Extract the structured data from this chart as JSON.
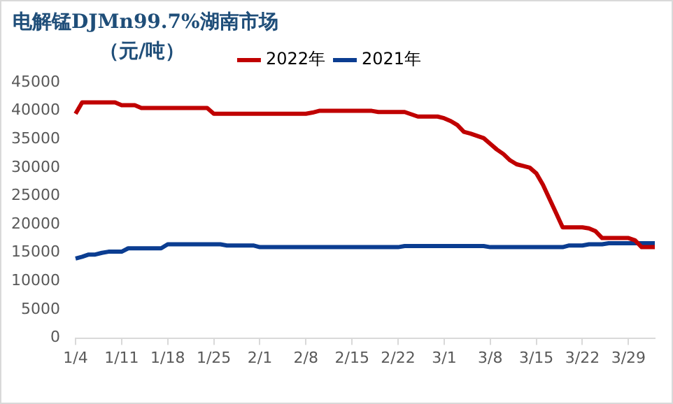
{
  "chart_data": {
    "type": "line",
    "title": "电解锰DJMn99.7%湖南市场",
    "subtitle": "（元/吨）",
    "categories": [
      "1/4",
      null,
      null,
      null,
      null,
      null,
      null,
      "1/11",
      null,
      null,
      null,
      null,
      null,
      null,
      "1/18",
      null,
      null,
      null,
      null,
      null,
      null,
      "1/25",
      null,
      null,
      null,
      null,
      null,
      null,
      "2/1",
      null,
      null,
      null,
      null,
      null,
      null,
      "2/8",
      null,
      null,
      null,
      null,
      null,
      null,
      "2/15",
      null,
      null,
      null,
      null,
      null,
      null,
      "2/22",
      null,
      null,
      null,
      null,
      null,
      null,
      "3/1",
      null,
      null,
      null,
      null,
      null,
      null,
      "3/8",
      null,
      null,
      null,
      null,
      null,
      null,
      "3/15",
      null,
      null,
      null,
      null,
      null,
      null,
      "3/22",
      null,
      null,
      null,
      null,
      null,
      null,
      "3/29",
      null,
      null,
      null,
      null
    ],
    "series": [
      {
        "name": "2022年",
        "color": "#c00000",
        "values": [
          39500,
          41500,
          41500,
          41500,
          41500,
          41500,
          41500,
          41000,
          41000,
          41000,
          40500,
          40500,
          40500,
          40500,
          40500,
          40500,
          40500,
          40500,
          40500,
          40500,
          40500,
          39500,
          39500,
          39500,
          39500,
          39500,
          39500,
          39500,
          39500,
          39500,
          39500,
          39500,
          39500,
          39500,
          39500,
          39500,
          39700,
          40000,
          40000,
          40000,
          40000,
          40000,
          40000,
          40000,
          40000,
          40000,
          39800,
          39800,
          39800,
          39800,
          39800,
          39400,
          39000,
          39000,
          39000,
          39000,
          38700,
          38200,
          37500,
          36300,
          36000,
          35600,
          35200,
          34200,
          33200,
          32400,
          31300,
          30600,
          30300,
          30000,
          29000,
          27000,
          24500,
          22000,
          19500,
          19500,
          19500,
          19500,
          19300,
          18800,
          17600,
          17600,
          17600,
          17600,
          17600,
          17200,
          16000,
          16000,
          16000
        ]
      },
      {
        "name": "2021年",
        "color": "#0b3d91",
        "values": [
          14000,
          14300,
          14700,
          14700,
          15000,
          15200,
          15200,
          15200,
          15800,
          15800,
          15800,
          15800,
          15800,
          15800,
          16500,
          16500,
          16500,
          16500,
          16500,
          16500,
          16500,
          16500,
          16500,
          16300,
          16300,
          16300,
          16300,
          16300,
          16000,
          16000,
          16000,
          16000,
          16000,
          16000,
          16000,
          16000,
          16000,
          16000,
          16000,
          16000,
          16000,
          16000,
          16000,
          16000,
          16000,
          16000,
          16000,
          16000,
          16000,
          16000,
          16200,
          16200,
          16200,
          16200,
          16200,
          16200,
          16200,
          16200,
          16200,
          16200,
          16200,
          16200,
          16200,
          16000,
          16000,
          16000,
          16000,
          16000,
          16000,
          16000,
          16000,
          16000,
          16000,
          16000,
          16000,
          16300,
          16300,
          16300,
          16500,
          16500,
          16500,
          16700,
          16700,
          16700,
          16700,
          16700,
          16700,
          16700,
          16700
        ]
      }
    ],
    "ylim": [
      0,
      45000
    ],
    "yticks": [
      0,
      5000,
      10000,
      15000,
      20000,
      25000,
      30000,
      35000,
      40000,
      45000
    ],
    "grid": false,
    "legend": "top",
    "marker": "none",
    "line_style": "solid"
  }
}
